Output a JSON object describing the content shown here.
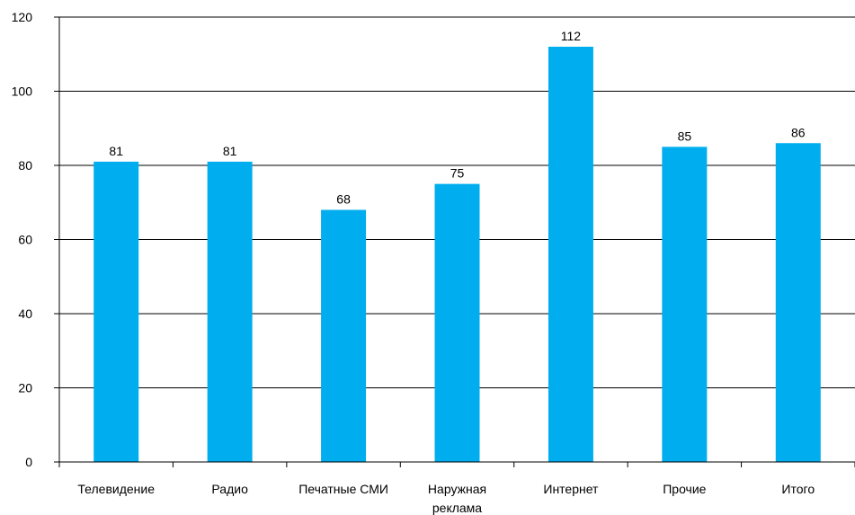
{
  "chart_data": {
    "type": "bar",
    "title": "",
    "xlabel": "",
    "ylabel": "",
    "categories": [
      [
        "Телевидение"
      ],
      [
        "Радио"
      ],
      [
        "Печатные СМИ"
      ],
      [
        "Наружная",
        "реклама"
      ],
      [
        "Интернет"
      ],
      [
        "Прочие"
      ],
      [
        "Итого"
      ]
    ],
    "values": [
      81,
      81,
      68,
      75,
      112,
      85,
      86
    ],
    "data_labels": [
      "81",
      "81",
      "68",
      "75",
      "112",
      "85",
      "86"
    ],
    "ylim": [
      0,
      120
    ],
    "yticks": [
      0,
      20,
      40,
      60,
      80,
      100,
      120
    ],
    "grid": true,
    "bar_color": "#00aeef",
    "legend": "none"
  }
}
